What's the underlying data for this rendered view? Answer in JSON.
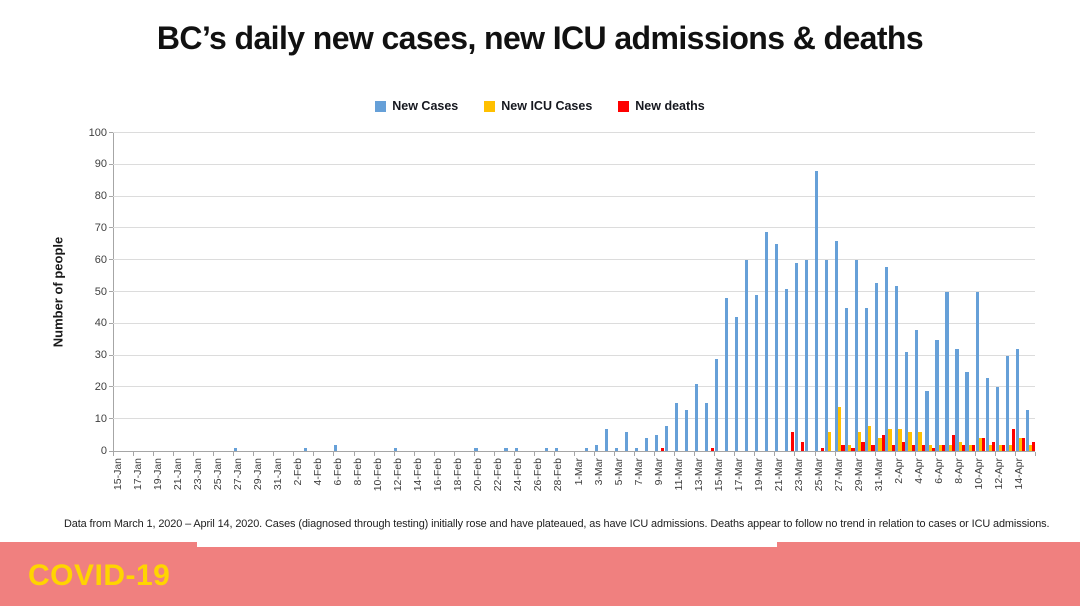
{
  "title": "BC’s daily new cases, new ICU admissions & deaths",
  "legend": [
    {
      "label": "New Cases",
      "color": "#66A0D8"
    },
    {
      "label": "New ICU Cases",
      "color": "#FFC000"
    },
    {
      "label": "New deaths",
      "color": "#FE0000"
    }
  ],
  "y_axis": {
    "label": "Number of people"
  },
  "caption": "Data from March 1, 2020 – April 14, 2020. Cases (diagnosed through testing) initially rose and have plateaued, as have ICU admissions. Deaths appear to follow no trend in relation to cases or ICU admissions.",
  "footer": {
    "banner_label": "COVID-19",
    "banner_color": "#F0807F",
    "label_color": "#FFD400"
  },
  "chart_data": {
    "type": "bar",
    "title": "BC’s daily new cases, new ICU admissions & deaths",
    "xlabel": "",
    "ylabel": "Number of people",
    "ylim": [
      0,
      100
    ],
    "y_tick_step": 10,
    "x_label_every": 2,
    "grid": true,
    "legend_position": "top-center",
    "x": [
      "15-Jan",
      "16-Jan",
      "17-Jan",
      "18-Jan",
      "19-Jan",
      "20-Jan",
      "21-Jan",
      "22-Jan",
      "23-Jan",
      "24-Jan",
      "25-Jan",
      "26-Jan",
      "27-Jan",
      "28-Jan",
      "29-Jan",
      "30-Jan",
      "31-Jan",
      "1-Feb",
      "2-Feb",
      "3-Feb",
      "4-Feb",
      "5-Feb",
      "6-Feb",
      "7-Feb",
      "8-Feb",
      "9-Feb",
      "10-Feb",
      "11-Feb",
      "12-Feb",
      "13-Feb",
      "14-Feb",
      "15-Feb",
      "16-Feb",
      "17-Feb",
      "18-Feb",
      "19-Feb",
      "20-Feb",
      "21-Feb",
      "22-Feb",
      "23-Feb",
      "24-Feb",
      "25-Feb",
      "26-Feb",
      "27-Feb",
      "28-Feb",
      "29-Feb",
      "1-Mar",
      "2-Mar",
      "3-Mar",
      "4-Mar",
      "5-Mar",
      "6-Mar",
      "7-Mar",
      "8-Mar",
      "9-Mar",
      "10-Mar",
      "11-Mar",
      "12-Mar",
      "13-Mar",
      "14-Mar",
      "15-Mar",
      "16-Mar",
      "17-Mar",
      "18-Mar",
      "19-Mar",
      "20-Mar",
      "21-Mar",
      "22-Mar",
      "23-Mar",
      "24-Mar",
      "25-Mar",
      "26-Mar",
      "27-Mar",
      "28-Mar",
      "29-Mar",
      "30-Mar",
      "31-Mar",
      "1-Apr",
      "2-Apr",
      "3-Apr",
      "4-Apr",
      "5-Apr",
      "6-Apr",
      "7-Apr",
      "8-Apr",
      "9-Apr",
      "10-Apr",
      "11-Apr",
      "12-Apr",
      "13-Apr",
      "14-Apr",
      "15-Apr"
    ],
    "series": [
      {
        "name": "New Cases",
        "color": "#66A0D8",
        "values": [
          0,
          0,
          0,
          0,
          0,
          0,
          0,
          0,
          0,
          0,
          0,
          0,
          1,
          0,
          0,
          0,
          0,
          0,
          0,
          1,
          0,
          0,
          2,
          0,
          0,
          0,
          0,
          0,
          1,
          0,
          0,
          0,
          0,
          0,
          0,
          0,
          1,
          0,
          0,
          1,
          1,
          0,
          0,
          1,
          1,
          0,
          0,
          1,
          2,
          7,
          1,
          6,
          1,
          4,
          5,
          8,
          15,
          13,
          21,
          15,
          29,
          48,
          42,
          60,
          49,
          69,
          65,
          51,
          59,
          60,
          88,
          60,
          66,
          45,
          60,
          45,
          53,
          58,
          52,
          31,
          38,
          19,
          35,
          50,
          32,
          25,
          50,
          23,
          20,
          30,
          32,
          13
        ]
      },
      {
        "name": "New ICU Cases",
        "color": "#FFC000",
        "values": [
          0,
          0,
          0,
          0,
          0,
          0,
          0,
          0,
          0,
          0,
          0,
          0,
          0,
          0,
          0,
          0,
          0,
          0,
          0,
          0,
          0,
          0,
          0,
          0,
          0,
          0,
          0,
          0,
          0,
          0,
          0,
          0,
          0,
          0,
          0,
          0,
          0,
          0,
          0,
          0,
          0,
          0,
          0,
          0,
          0,
          0,
          0,
          0,
          0,
          0,
          0,
          0,
          0,
          0,
          0,
          0,
          0,
          0,
          0,
          0,
          0,
          0,
          0,
          0,
          0,
          0,
          0,
          0,
          0,
          0,
          0,
          6,
          14,
          2,
          6,
          8,
          4,
          7,
          7,
          6,
          6,
          2,
          2,
          2,
          3,
          2,
          4,
          2,
          2,
          2,
          4,
          2
        ]
      },
      {
        "name": "New deaths",
        "color": "#FE0000",
        "values": [
          0,
          0,
          0,
          0,
          0,
          0,
          0,
          0,
          0,
          0,
          0,
          0,
          0,
          0,
          0,
          0,
          0,
          0,
          0,
          0,
          0,
          0,
          0,
          0,
          0,
          0,
          0,
          0,
          0,
          0,
          0,
          0,
          0,
          0,
          0,
          0,
          0,
          0,
          0,
          0,
          0,
          0,
          0,
          0,
          0,
          0,
          0,
          0,
          0,
          0,
          0,
          0,
          0,
          0,
          1,
          0,
          0,
          0,
          0,
          1,
          0,
          0,
          0,
          0,
          0,
          0,
          0,
          6,
          3,
          0,
          1,
          0,
          2,
          1,
          3,
          2,
          5,
          2,
          3,
          2,
          2,
          1,
          2,
          5,
          2,
          2,
          4,
          3,
          2,
          7,
          4,
          3
        ]
      }
    ]
  }
}
